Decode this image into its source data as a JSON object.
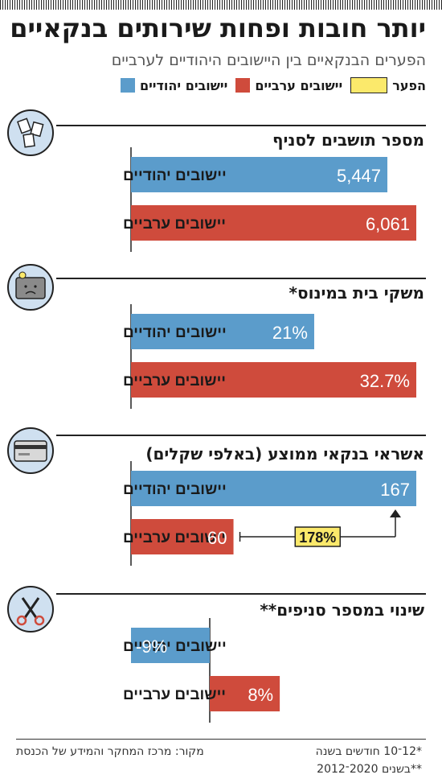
{
  "header": {
    "title": "יותר חובות ופחות שירותים בנקאיים",
    "subtitle": "הפערים הבנקאיים בין היישובים היהודיים לערביים"
  },
  "legend": [
    {
      "label": "יישובים יהודיים",
      "color": "#5b9ccb"
    },
    {
      "label": "יישובים ערביים",
      "color": "#cf4b3c"
    },
    {
      "label": "הפער",
      "color": "#fbe96b"
    }
  ],
  "colors": {
    "jewish": "#5b9ccb",
    "arab": "#cf4b3c",
    "gap": "#fbe96b"
  },
  "chart_data": [
    {
      "type": "bar",
      "title": "מספר תושבים לסניף",
      "icon": "paper-documents-icon",
      "categories": [
        "יישובים יהודיים",
        "יישובים ערביים"
      ],
      "values": [
        5447,
        6061
      ],
      "labels": [
        "5,447",
        "6,061"
      ]
    },
    {
      "type": "bar",
      "title": "משקי בית במינוס*",
      "icon": "sad-wallet-icon",
      "categories": [
        "יישובים יהודיים",
        "יישובים ערביים"
      ],
      "values": [
        21,
        32.7
      ],
      "labels": [
        "21%",
        "32.7%"
      ],
      "unit": "%"
    },
    {
      "type": "bar",
      "title": "אשראי בנקאי ממוצע (באלפי שקלים)",
      "icon": "credit-card-icon",
      "categories": [
        "יישובים יהודיים",
        "יישובים ערביים"
      ],
      "values": [
        167,
        60
      ],
      "labels": [
        "167",
        "60"
      ],
      "gap_label": "178%"
    },
    {
      "type": "bar",
      "title": "שינוי במספר סניפים**",
      "icon": "scissors-icon",
      "categories": [
        "יישובים יהודיים",
        "יישובים ערביים"
      ],
      "values": [
        -9,
        8
      ],
      "labels": [
        "-9%",
        "8%"
      ],
      "unit": "%"
    }
  ],
  "footer": {
    "source": "מקור: מרכז המחקר והמידע של הכנסת",
    "note1": "*12־10 חודשים בשנה",
    "note2": "**בשנים 2020־2012"
  }
}
